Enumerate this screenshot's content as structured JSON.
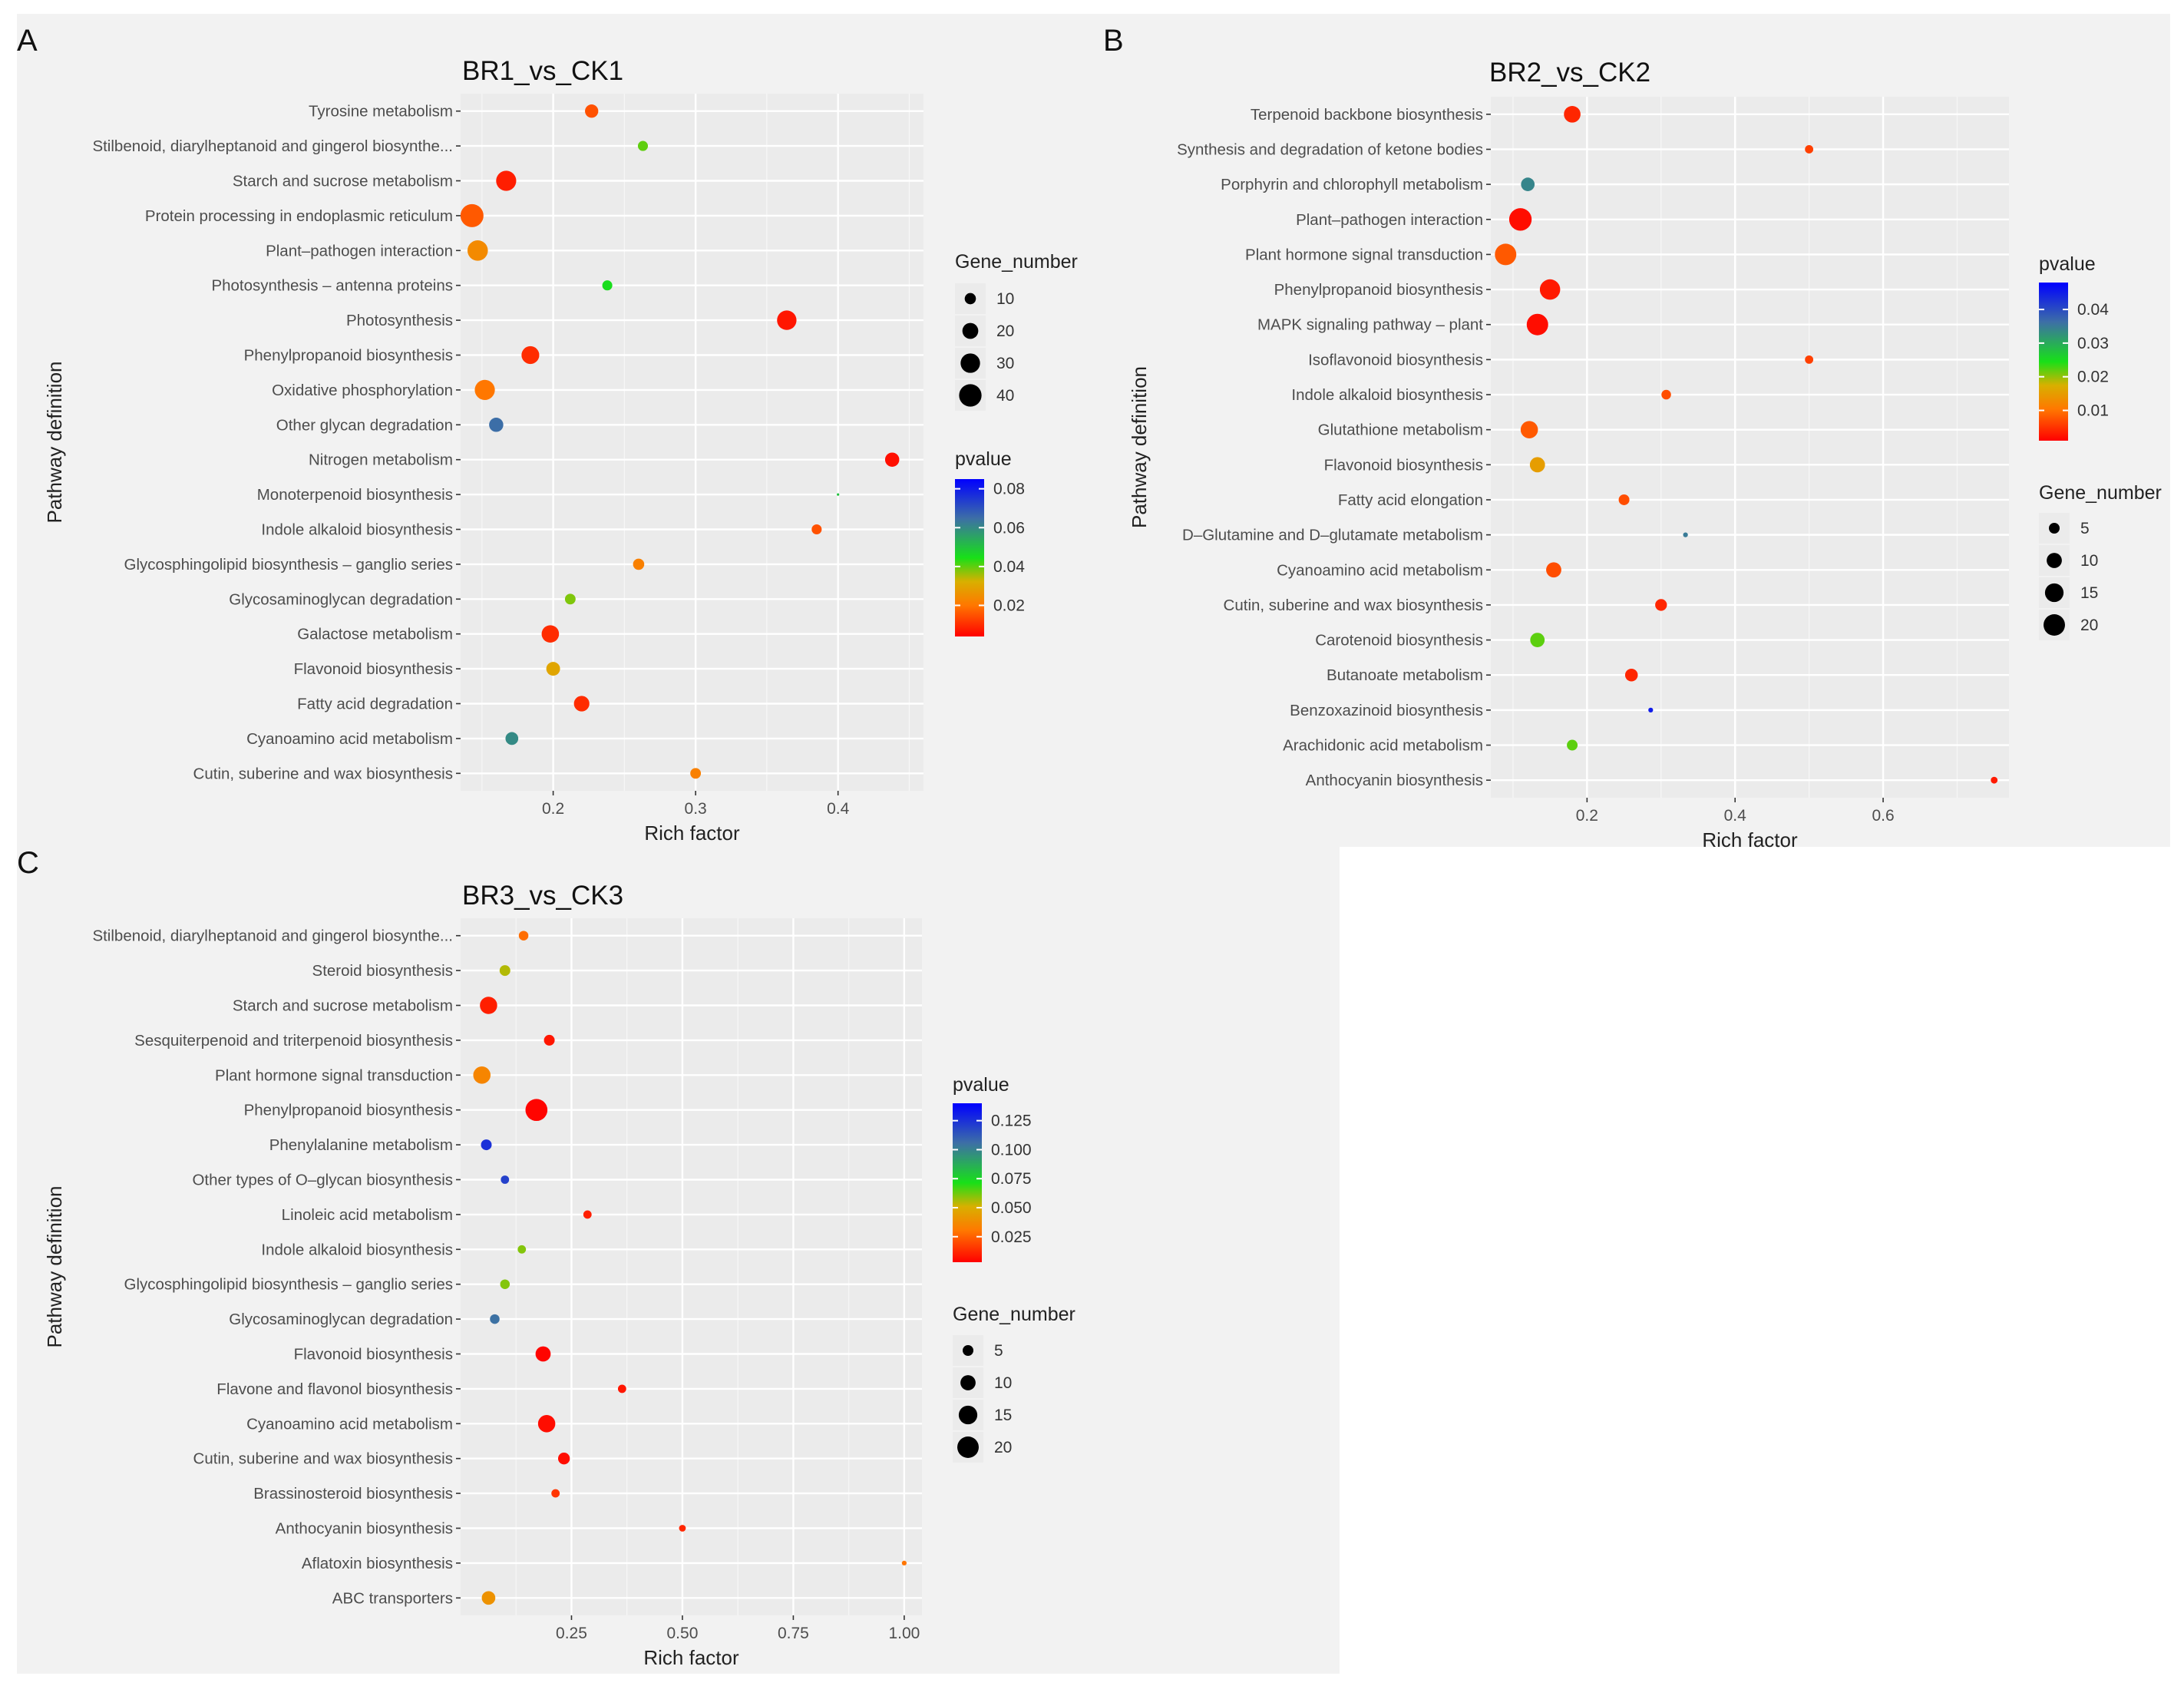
{
  "figure": {
    "background": "#ffffff",
    "panel_background": "#f2f2f2"
  },
  "chart_data": [
    {
      "panel": "A",
      "type": "scatter",
      "title": "BR1_vs_CK1",
      "xlabel": "Rich factor",
      "ylabel": "Pathway definition",
      "xlim": [
        0.135,
        0.46
      ],
      "xticks": [
        0.2,
        0.3,
        0.4
      ],
      "xtick_labels": [
        "0.2",
        "0.3",
        "0.4"
      ],
      "x_minor": [
        0.15,
        0.25,
        0.35,
        0.45
      ],
      "grid": true,
      "categories": [
        "Tyrosine metabolism",
        "Stilbenoid, diarylheptanoid and gingerol biosynthe...",
        "Starch and sucrose metabolism",
        "Protein processing in endoplasmic reticulum",
        "Plant–pathogen interaction",
        "Photosynthesis – antenna proteins",
        "Photosynthesis",
        "Phenylpropanoid biosynthesis",
        "Oxidative phosphorylation",
        "Other glycan degradation",
        "Nitrogen metabolism",
        "Monoterpenoid biosynthesis",
        "Indole alkaloid biosynthesis",
        "Glycosphingolipid biosynthesis – ganglio series",
        "Glycosaminoglycan degradation",
        "Galactose metabolism",
        "Flavonoid biosynthesis",
        "Fatty acid degradation",
        "Cyanoamino acid metabolism",
        "Cutin, suberine and wax biosynthesis"
      ],
      "points": [
        {
          "category": "Tyrosine metabolism",
          "rich_factor": 0.227,
          "gene_number": 14,
          "pvalue": 0.015
        },
        {
          "category": "Stilbenoid, diarylheptanoid and gingerol biosynthe...",
          "rich_factor": 0.263,
          "gene_number": 8,
          "pvalue": 0.04
        },
        {
          "category": "Starch and sucrose metabolism",
          "rich_factor": 0.167,
          "gene_number": 32,
          "pvalue": 0.008
        },
        {
          "category": "Protein processing in endoplasmic reticulum",
          "rich_factor": 0.143,
          "gene_number": 42,
          "pvalue": 0.016
        },
        {
          "category": "Plant–pathogen interaction",
          "rich_factor": 0.147,
          "gene_number": 33,
          "pvalue": 0.024
        },
        {
          "category": "Photosynthesis – antenna proteins",
          "rich_factor": 0.238,
          "gene_number": 8,
          "pvalue": 0.045
        },
        {
          "category": "Photosynthesis",
          "rich_factor": 0.364,
          "gene_number": 30,
          "pvalue": 0.007
        },
        {
          "category": "Phenylpropanoid biosynthesis",
          "rich_factor": 0.184,
          "gene_number": 25,
          "pvalue": 0.01
        },
        {
          "category": "Oxidative phosphorylation",
          "rich_factor": 0.152,
          "gene_number": 32,
          "pvalue": 0.02
        },
        {
          "category": "Other glycan degradation",
          "rich_factor": 0.16,
          "gene_number": 16,
          "pvalue": 0.065
        },
        {
          "category": "Nitrogen metabolism",
          "rich_factor": 0.438,
          "gene_number": 16,
          "pvalue": 0.006
        },
        {
          "category": "Monoterpenoid biosynthesis",
          "rich_factor": 0.4,
          "gene_number": 0.4,
          "pvalue": 0.05
        },
        {
          "category": "Indole alkaloid biosynthesis",
          "rich_factor": 0.385,
          "gene_number": 8,
          "pvalue": 0.015
        },
        {
          "category": "Glycosphingolipid biosynthesis – ganglio series",
          "rich_factor": 0.26,
          "gene_number": 10,
          "pvalue": 0.022
        },
        {
          "category": "Glycosaminoglycan degradation",
          "rich_factor": 0.212,
          "gene_number": 9,
          "pvalue": 0.038
        },
        {
          "category": "Galactose metabolism",
          "rich_factor": 0.198,
          "gene_number": 24,
          "pvalue": 0.01
        },
        {
          "category": "Flavonoid biosynthesis",
          "rich_factor": 0.2,
          "gene_number": 15,
          "pvalue": 0.03
        },
        {
          "category": "Fatty acid degradation",
          "rich_factor": 0.22,
          "gene_number": 19,
          "pvalue": 0.01
        },
        {
          "category": "Cyanoamino acid metabolism",
          "rich_factor": 0.171,
          "gene_number": 13,
          "pvalue": 0.06
        },
        {
          "category": "Cutin, suberine and wax biosynthesis",
          "rich_factor": 0.3,
          "gene_number": 9,
          "pvalue": 0.022
        }
      ],
      "legends": [
        {
          "type": "size",
          "title": "Gene_number",
          "labels": [
            "10",
            "20",
            "30",
            "40"
          ],
          "values": [
            10,
            20,
            30,
            40
          ]
        },
        {
          "type": "color",
          "title": "pvalue",
          "range": [
            0.004,
            0.085
          ],
          "labels": [
            "0.08",
            "0.06",
            "0.04",
            "0.02"
          ],
          "values": [
            0.08,
            0.06,
            0.04,
            0.02
          ]
        }
      ],
      "size_range": [
        0,
        42
      ]
    },
    {
      "panel": "B",
      "type": "scatter",
      "title": "BR2_vs_CK2",
      "xlabel": "Rich factor",
      "ylabel": "Pathway definition",
      "xlim": [
        0.07,
        0.77
      ],
      "xticks": [
        0.2,
        0.4,
        0.6
      ],
      "xtick_labels": [
        "0.2",
        "0.4",
        "0.6"
      ],
      "x_minor": [
        0.1,
        0.3,
        0.5,
        0.7
      ],
      "grid": true,
      "categories": [
        "Terpenoid backbone biosynthesis",
        "Synthesis and degradation of ketone bodies",
        "Porphyrin and chlorophyll metabolism",
        "Plant–pathogen interaction",
        "Plant hormone signal transduction",
        "Phenylpropanoid biosynthesis",
        "MAPK signaling pathway – plant",
        "Isoflavonoid biosynthesis",
        "Indole alkaloid biosynthesis",
        "Glutathione metabolism",
        "Flavonoid biosynthesis",
        "Fatty acid elongation",
        "D–Glutamine and D–glutamate metabolism",
        "Cyanoamino acid metabolism",
        "Cutin, suberine and wax biosynthesis",
        "Carotenoid biosynthesis",
        "Butanoate metabolism",
        "Benzoxazinoid biosynthesis",
        "Arachidonic acid metabolism",
        "Anthocyanin biosynthesis"
      ],
      "points": [
        {
          "category": "Terpenoid backbone biosynthesis",
          "rich_factor": 0.18,
          "gene_number": 12,
          "pvalue": 0.004
        },
        {
          "category": "Synthesis and degradation of ketone bodies",
          "rich_factor": 0.5,
          "gene_number": 3,
          "pvalue": 0.006
        },
        {
          "category": "Porphyrin and chlorophyll metabolism",
          "rich_factor": 0.12,
          "gene_number": 8,
          "pvalue": 0.034
        },
        {
          "category": "Plant–pathogen interaction",
          "rich_factor": 0.11,
          "gene_number": 22,
          "pvalue": 0.002
        },
        {
          "category": "Plant hormone signal transduction",
          "rich_factor": 0.09,
          "gene_number": 20,
          "pvalue": 0.008
        },
        {
          "category": "Phenylpropanoid biosynthesis",
          "rich_factor": 0.15,
          "gene_number": 18,
          "pvalue": 0.003
        },
        {
          "category": "MAPK signaling pathway – plant",
          "rich_factor": 0.133,
          "gene_number": 20,
          "pvalue": 0.002
        },
        {
          "category": "Isoflavonoid biosynthesis",
          "rich_factor": 0.5,
          "gene_number": 3,
          "pvalue": 0.006
        },
        {
          "category": "Indole alkaloid biosynthesis",
          "rich_factor": 0.307,
          "gene_number": 4,
          "pvalue": 0.007
        },
        {
          "category": "Glutathione metabolism",
          "rich_factor": 0.122,
          "gene_number": 13,
          "pvalue": 0.008
        },
        {
          "category": "Flavonoid biosynthesis",
          "rich_factor": 0.133,
          "gene_number": 10,
          "pvalue": 0.015
        },
        {
          "category": "Fatty acid elongation",
          "rich_factor": 0.25,
          "gene_number": 5,
          "pvalue": 0.007
        },
        {
          "category": "D–Glutamine and D–glutamate metabolism",
          "rich_factor": 0.333,
          "gene_number": 1,
          "pvalue": 0.035
        },
        {
          "category": "Cyanoamino acid metabolism",
          "rich_factor": 0.155,
          "gene_number": 10,
          "pvalue": 0.007
        },
        {
          "category": "Cutin, suberine and wax biosynthesis",
          "rich_factor": 0.3,
          "gene_number": 6,
          "pvalue": 0.004
        },
        {
          "category": "Carotenoid biosynthesis",
          "rich_factor": 0.133,
          "gene_number": 9,
          "pvalue": 0.022
        },
        {
          "category": "Butanoate metabolism",
          "rich_factor": 0.26,
          "gene_number": 7,
          "pvalue": 0.004
        },
        {
          "category": "Benzoxazinoid biosynthesis",
          "rich_factor": 0.286,
          "gene_number": 1,
          "pvalue": 0.045
        },
        {
          "category": "Arachidonic acid metabolism",
          "rich_factor": 0.18,
          "gene_number": 5,
          "pvalue": 0.022
        },
        {
          "category": "Anthocyanin biosynthesis",
          "rich_factor": 0.75,
          "gene_number": 2,
          "pvalue": 0.003
        }
      ],
      "legends": [
        {
          "type": "color",
          "title": "pvalue",
          "range": [
            0.001,
            0.048
          ],
          "labels": [
            "0.04",
            "0.03",
            "0.02",
            "0.01"
          ],
          "values": [
            0.04,
            0.03,
            0.02,
            0.01
          ]
        },
        {
          "type": "size",
          "title": "Gene_number",
          "labels": [
            "5",
            "10",
            "15",
            "20"
          ],
          "values": [
            5,
            10,
            15,
            20
          ]
        }
      ],
      "size_range": [
        0,
        23
      ]
    },
    {
      "panel": "C",
      "type": "scatter",
      "title": "BR3_vs_CK3",
      "xlabel": "Rich factor",
      "ylabel": "Pathway definition",
      "xlim": [
        0.0,
        1.04
      ],
      "xticks": [
        0.25,
        0.5,
        0.75,
        1.0
      ],
      "xtick_labels": [
        "0.25",
        "0.50",
        "0.75",
        "1.00"
      ],
      "x_minor": [
        0.125,
        0.375,
        0.625,
        0.875
      ],
      "grid": true,
      "categories": [
        "Stilbenoid, diarylheptanoid and gingerol biosynthe...",
        "Steroid biosynthesis",
        "Starch and sucrose metabolism",
        "Sesquiterpenoid and triterpenoid biosynthesis",
        "Plant hormone signal transduction",
        "Phenylpropanoid biosynthesis",
        "Phenylalanine metabolism",
        "Other types of O–glycan biosynthesis",
        "Linoleic acid metabolism",
        "Indole alkaloid biosynthesis",
        "Glycosphingolipid biosynthesis – ganglio series",
        "Glycosaminoglycan degradation",
        "Flavonoid biosynthesis",
        "Flavone and flavonol biosynthesis",
        "Cyanoamino acid metabolism",
        "Cutin, suberine and wax biosynthesis",
        "Brassinosteroid biosynthesis",
        "Anthocyanin biosynthesis",
        "Aflatoxin biosynthesis",
        "ABC transporters"
      ],
      "points": [
        {
          "category": "Stilbenoid, diarylheptanoid and gingerol biosynthe...",
          "rich_factor": 0.142,
          "gene_number": 4,
          "pvalue": 0.028
        },
        {
          "category": "Steroid biosynthesis",
          "rich_factor": 0.1,
          "gene_number": 5,
          "pvalue": 0.055
        },
        {
          "category": "Starch and sucrose metabolism",
          "rich_factor": 0.063,
          "gene_number": 13,
          "pvalue": 0.01
        },
        {
          "category": "Sesquiterpenoid and triterpenoid biosynthesis",
          "rich_factor": 0.2,
          "gene_number": 5,
          "pvalue": 0.008
        },
        {
          "category": "Plant hormone signal transduction",
          "rich_factor": 0.048,
          "gene_number": 13,
          "pvalue": 0.035
        },
        {
          "category": "Phenylpropanoid biosynthesis",
          "rich_factor": 0.171,
          "gene_number": 21,
          "pvalue": 0.004
        },
        {
          "category": "Phenylalanine metabolism",
          "rich_factor": 0.058,
          "gene_number": 5,
          "pvalue": 0.125
        },
        {
          "category": "Other types of O–glycan biosynthesis",
          "rich_factor": 0.1,
          "gene_number": 3,
          "pvalue": 0.12
        },
        {
          "category": "Linoleic acid metabolism",
          "rich_factor": 0.286,
          "gene_number": 3,
          "pvalue": 0.01
        },
        {
          "category": "Indole alkaloid biosynthesis",
          "rich_factor": 0.138,
          "gene_number": 3,
          "pvalue": 0.06
        },
        {
          "category": "Glycosphingolipid biosynthesis – ganglio series",
          "rich_factor": 0.1,
          "gene_number": 4,
          "pvalue": 0.06
        },
        {
          "category": "Glycosaminoglycan degradation",
          "rich_factor": 0.077,
          "gene_number": 4,
          "pvalue": 0.105
        },
        {
          "category": "Flavonoid biosynthesis",
          "rich_factor": 0.186,
          "gene_number": 10,
          "pvalue": 0.004
        },
        {
          "category": "Flavone and flavonol biosynthesis",
          "rich_factor": 0.364,
          "gene_number": 3,
          "pvalue": 0.008
        },
        {
          "category": "Cyanoamino acid metabolism",
          "rich_factor": 0.194,
          "gene_number": 13,
          "pvalue": 0.006
        },
        {
          "category": "Cutin, suberine and wax biosynthesis",
          "rich_factor": 0.233,
          "gene_number": 6,
          "pvalue": 0.006
        },
        {
          "category": "Brassinosteroid biosynthesis",
          "rich_factor": 0.214,
          "gene_number": 3,
          "pvalue": 0.015
        },
        {
          "category": "Anthocyanin biosynthesis",
          "rich_factor": 0.5,
          "gene_number": 2,
          "pvalue": 0.012
        },
        {
          "category": "Aflatoxin biosynthesis",
          "rich_factor": 1.0,
          "gene_number": 1,
          "pvalue": 0.03
        },
        {
          "category": "ABC transporters",
          "rich_factor": 0.063,
          "gene_number": 8,
          "pvalue": 0.04
        }
      ],
      "legends": [
        {
          "type": "color",
          "title": "pvalue",
          "range": [
            0.003,
            0.14
          ],
          "labels": [
            "0.125",
            "0.100",
            "0.075",
            "0.050",
            "0.025"
          ],
          "values": [
            0.125,
            0.1,
            0.075,
            0.05,
            0.025
          ]
        },
        {
          "type": "size",
          "title": "Gene_number",
          "labels": [
            "5",
            "10",
            "15",
            "20"
          ],
          "values": [
            5,
            10,
            15,
            20
          ]
        }
      ],
      "size_range": [
        0,
        23
      ]
    }
  ]
}
